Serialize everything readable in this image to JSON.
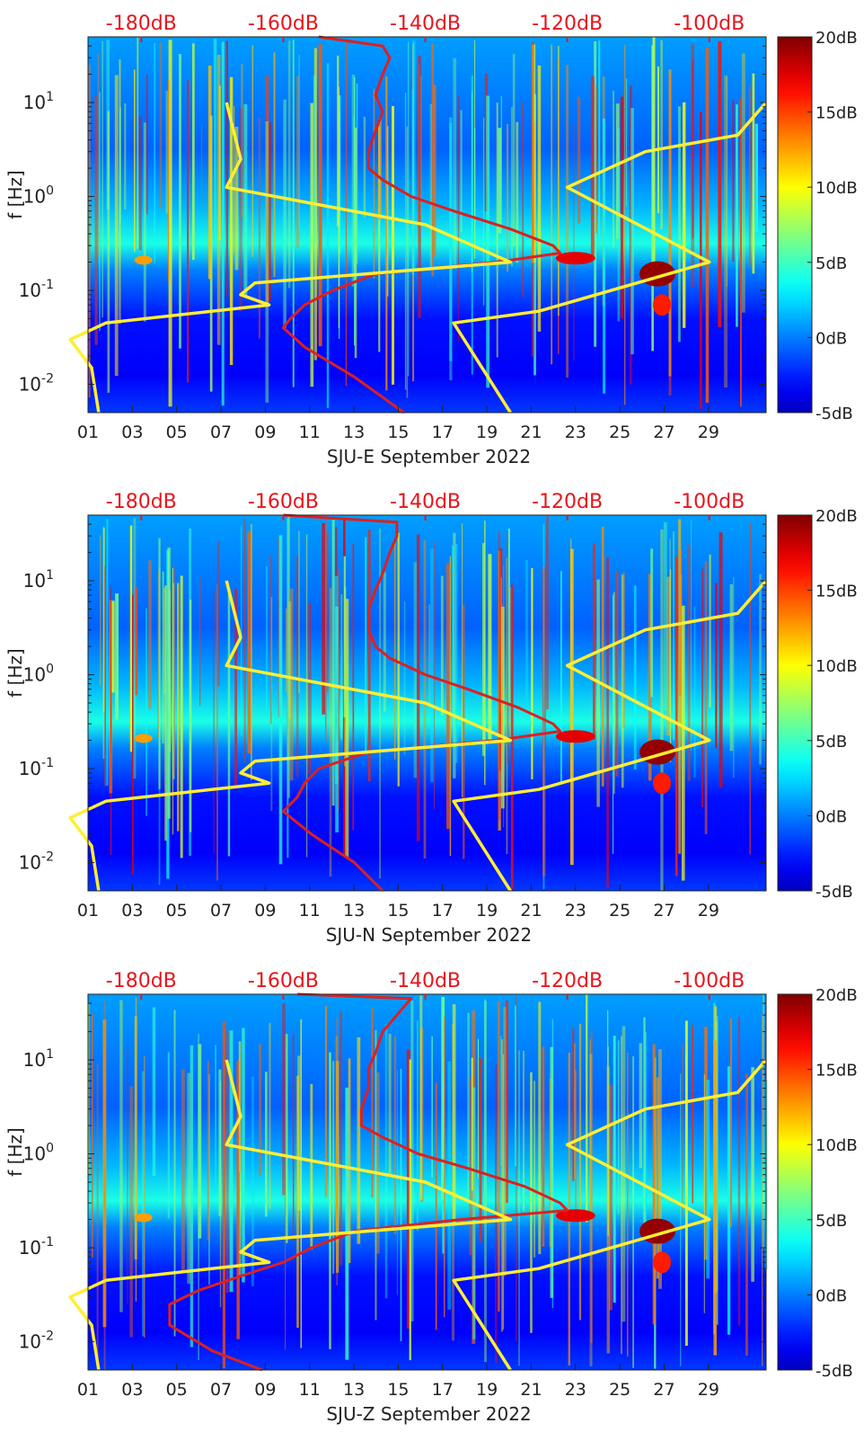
{
  "colors": {
    "noise_model_lines": "#ffee33",
    "psd_line": "#dd2020",
    "top_axis_text": "#e8141c",
    "colormap": "jet"
  },
  "colorbar": {
    "ticks": [
      "20dB",
      "15dB",
      "10dB",
      "5dB",
      "0dB",
      "-5dB"
    ],
    "range_db": [
      -5,
      20
    ]
  },
  "shared": {
    "ylabel": "f [Hz]",
    "x_ticks": [
      "01",
      "03",
      "05",
      "07",
      "09",
      "11",
      "13",
      "15",
      "17",
      "19",
      "21",
      "23",
      "25",
      "27",
      "29"
    ],
    "y_ticks": [
      {
        "base": "10",
        "exp": "1"
      },
      {
        "base": "10",
        "exp": "0"
      },
      {
        "base": "10",
        "exp": "-1"
      },
      {
        "base": "10",
        "exp": "-2"
      }
    ],
    "top_ticks": [
      "-180dB",
      "-160dB",
      "-140dB",
      "-120dB",
      "-100dB"
    ]
  },
  "chart_data": [
    {
      "type": "heatmap",
      "xlabel": "SJU-E September 2022",
      "ylabel": "f [Hz]",
      "x_range_days": [
        1,
        31.6
      ],
      "y_range_hz": [
        0.005,
        50
      ],
      "y_scale": "log",
      "top_x_range_db": [
        -187.5,
        -92
      ],
      "overlays": [
        {
          "kind": "psd_line",
          "color": "red",
          "points": [
            [
              -155,
              50
            ],
            [
              -146,
              40
            ],
            [
              -145,
              30
            ],
            [
              -146,
              20
            ],
            [
              -147,
              12
            ],
            [
              -146,
              8
            ],
            [
              -147,
              5
            ],
            [
              -148,
              3
            ],
            [
              -148,
              2
            ],
            [
              -146,
              1.5
            ],
            [
              -142,
              1.0
            ],
            [
              -136,
              0.7
            ],
            [
              -128,
              0.45
            ],
            [
              -122,
              0.3
            ],
            [
              -121,
              0.25
            ],
            [
              -130,
              0.2
            ],
            [
              -147,
              0.15
            ],
            [
              -153,
              0.1
            ],
            [
              -157,
              0.07
            ],
            [
              -159,
              0.05
            ],
            [
              -160,
              0.04
            ],
            [
              -157,
              0.025
            ],
            [
              -150,
              0.012
            ],
            [
              -143,
              0.005
            ]
          ]
        },
        {
          "kind": "low_noise_model",
          "color": "yellow",
          "points": [
            [
              -168,
              10
            ],
            [
              -167,
              5
            ],
            [
              -166,
              2.5
            ],
            [
              -168,
              1.25
            ],
            [
              -140,
              0.5
            ],
            [
              -128,
              0.2
            ],
            [
              -164,
              0.12
            ],
            [
              -166,
              0.09
            ],
            [
              -162,
              0.07
            ],
            [
              -185,
              0.045
            ],
            [
              -190,
              0.03
            ],
            [
              -187,
              0.015
            ],
            [
              -186,
              0.005
            ]
          ]
        },
        {
          "kind": "high_noise_model",
          "color": "yellow",
          "points": [
            [
              -92,
              10
            ],
            [
              -96,
              4.5
            ],
            [
              -109,
              3
            ],
            [
              -120,
              1.25
            ],
            [
              -100,
              0.2
            ],
            [
              -124,
              0.06
            ],
            [
              -136,
              0.045
            ],
            [
              -128,
              0.005
            ]
          ]
        }
      ]
    },
    {
      "type": "heatmap",
      "xlabel": "SJU-N September 2022",
      "ylabel": "f [Hz]",
      "x_range_days": [
        1,
        31.6
      ],
      "y_range_hz": [
        0.005,
        50
      ],
      "y_scale": "log",
      "top_x_range_db": [
        -187.5,
        -92
      ],
      "overlays": [
        {
          "kind": "psd_line",
          "color": "red",
          "points": [
            [
              -160,
              50
            ],
            [
              -144,
              42
            ],
            [
              -144,
              30
            ],
            [
              -145,
              20
            ],
            [
              -146,
              12
            ],
            [
              -147,
              8
            ],
            [
              -148,
              5
            ],
            [
              -148,
              3
            ],
            [
              -147,
              2
            ],
            [
              -145,
              1.5
            ],
            [
              -140,
              1.0
            ],
            [
              -134,
              0.7
            ],
            [
              -127,
              0.45
            ],
            [
              -122,
              0.3
            ],
            [
              -121,
              0.25
            ],
            [
              -130,
              0.2
            ],
            [
              -148,
              0.15
            ],
            [
              -155,
              0.1
            ],
            [
              -157,
              0.07
            ],
            [
              -158,
              0.05
            ],
            [
              -160,
              0.035
            ],
            [
              -156,
              0.02
            ],
            [
              -150,
              0.01
            ],
            [
              -146,
              0.005
            ]
          ]
        },
        {
          "kind": "low_noise_model",
          "color": "yellow",
          "points": [
            [
              -168,
              10
            ],
            [
              -167,
              5
            ],
            [
              -166,
              2.5
            ],
            [
              -168,
              1.25
            ],
            [
              -140,
              0.5
            ],
            [
              -128,
              0.2
            ],
            [
              -164,
              0.12
            ],
            [
              -166,
              0.09
            ],
            [
              -162,
              0.07
            ],
            [
              -185,
              0.045
            ],
            [
              -190,
              0.03
            ],
            [
              -187,
              0.015
            ],
            [
              -186,
              0.005
            ]
          ]
        },
        {
          "kind": "high_noise_model",
          "color": "yellow",
          "points": [
            [
              -92,
              10
            ],
            [
              -96,
              4.5
            ],
            [
              -109,
              3
            ],
            [
              -120,
              1.25
            ],
            [
              -100,
              0.2
            ],
            [
              -124,
              0.06
            ],
            [
              -136,
              0.045
            ],
            [
              -128,
              0.005
            ]
          ]
        }
      ]
    },
    {
      "type": "heatmap",
      "xlabel": "SJU-Z September 2022",
      "ylabel": "f [Hz]",
      "x_range_days": [
        1,
        31.6
      ],
      "y_range_hz": [
        0.005,
        50
      ],
      "y_scale": "log",
      "top_x_range_db": [
        -187.5,
        -92
      ],
      "overlays": [
        {
          "kind": "psd_line",
          "color": "red",
          "points": [
            [
              -158,
              50
            ],
            [
              -142,
              45
            ],
            [
              -144,
              30
            ],
            [
              -146,
              20
            ],
            [
              -147,
              12
            ],
            [
              -148,
              8
            ],
            [
              -148,
              5
            ],
            [
              -149,
              3
            ],
            [
              -149,
              2
            ],
            [
              -146,
              1.5
            ],
            [
              -141,
              1.0
            ],
            [
              -134,
              0.7
            ],
            [
              -126,
              0.45
            ],
            [
              -121,
              0.3
            ],
            [
              -120,
              0.25
            ],
            [
              -135,
              0.2
            ],
            [
              -150,
              0.15
            ],
            [
              -156,
              0.1
            ],
            [
              -160,
              0.07
            ],
            [
              -166,
              0.05
            ],
            [
              -172,
              0.035
            ],
            [
              -176,
              0.025
            ],
            [
              -176,
              0.015
            ],
            [
              -170,
              0.008
            ],
            [
              -163,
              0.005
            ]
          ]
        },
        {
          "kind": "low_noise_model",
          "color": "yellow",
          "points": [
            [
              -168,
              10
            ],
            [
              -167,
              5
            ],
            [
              -166,
              2.5
            ],
            [
              -168,
              1.25
            ],
            [
              -140,
              0.5
            ],
            [
              -128,
              0.2
            ],
            [
              -164,
              0.12
            ],
            [
              -166,
              0.09
            ],
            [
              -162,
              0.07
            ],
            [
              -185,
              0.045
            ],
            [
              -190,
              0.03
            ],
            [
              -187,
              0.015
            ],
            [
              -186,
              0.005
            ]
          ]
        },
        {
          "kind": "high_noise_model",
          "color": "yellow",
          "points": [
            [
              -92,
              10
            ],
            [
              -96,
              4.5
            ],
            [
              -109,
              3
            ],
            [
              -120,
              1.25
            ],
            [
              -100,
              0.2
            ],
            [
              -124,
              0.06
            ],
            [
              -136,
              0.045
            ],
            [
              -128,
              0.005
            ]
          ]
        }
      ]
    }
  ]
}
